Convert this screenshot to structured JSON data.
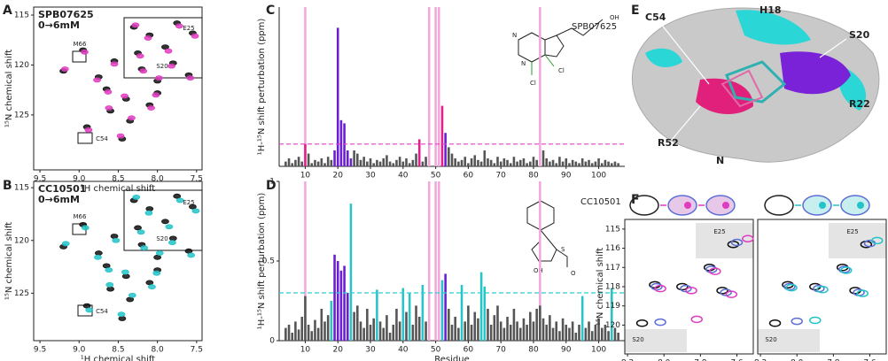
{
  "panel_labels": [
    "A",
    "B",
    "C",
    "D",
    "E",
    "F"
  ],
  "structures": [
    {
      "name": "SPB07625",
      "color": "#e03cc0",
      "atoms": [
        "N",
        "N",
        "OH",
        "Cl",
        "Cl"
      ]
    },
    {
      "name": "CC10501",
      "color": "#22c4c8",
      "atoms": [
        "S",
        "OH",
        "O"
      ]
    }
  ],
  "surface": {
    "labels": [
      "C54",
      "H18",
      "S20",
      "R22",
      "R52",
      "N"
    ]
  },
  "chart_data": [
    {
      "type": "scatter",
      "title": "SPB07625",
      "title_color": "#e03cc0",
      "subtitle": "0→6mM",
      "xlabel": "¹H chemical shift",
      "ylabel": "¹⁵N chemical shift",
      "xlim": [
        9.58,
        7.43
      ],
      "ylim": [
        130.5,
        114.2
      ],
      "xticks": [
        9.5,
        {
          "value": 9,
          "label": "9.0"
        },
        8.5,
        {
          "value": 8,
          "label": "8.0"
        },
        7.5
      ],
      "yticks": [
        115,
        120,
        125
      ],
      "annotations": [
        "M66",
        "E25",
        "S20",
        "C54"
      ],
      "series": [
        {
          "color": "#111111",
          "x": [
            8.95,
            8.3,
            8.1,
            7.9,
            7.75,
            8.55,
            8.2,
            8.0,
            7.8,
            8.65,
            8.4,
            8.1,
            8.75,
            8.35,
            8.0,
            7.6,
            9.2,
            8.9,
            8.45,
            7.55,
            8.25,
            8.6
          ],
          "values": [
            118.5,
            116.2,
            117.0,
            118.2,
            115.8,
            119.6,
            120.4,
            121.6,
            119.8,
            122.4,
            123.4,
            124.0,
            121.2,
            125.6,
            122.8,
            121.0,
            120.6,
            126.2,
            127.4,
            116.8,
            118.8,
            124.6
          ]
        },
        {
          "color": "#e03cc0",
          "x": [
            8.93,
            8.28,
            8.12,
            7.86,
            7.72,
            8.55,
            8.18,
            7.98,
            7.82,
            8.63,
            8.42,
            8.08,
            8.77,
            8.33,
            8.02,
            7.58,
            9.18,
            8.88,
            8.47,
            7.52,
            8.22,
            8.62
          ],
          "values": [
            118.7,
            116.0,
            117.3,
            118.6,
            116.1,
            119.9,
            120.6,
            121.3,
            120.1,
            122.7,
            123.1,
            124.3,
            121.5,
            125.3,
            123.0,
            121.3,
            120.4,
            126.5,
            127.1,
            117.1,
            119.1,
            124.3
          ]
        }
      ]
    },
    {
      "type": "scatter",
      "title": "CC10501",
      "title_color": "#22c4c8",
      "subtitle": "0→6mM",
      "xlabel": "¹H chemical shift",
      "ylabel": "¹⁵N chemical shift",
      "xlim": [
        9.58,
        7.43
      ],
      "ylim": [
        129.5,
        114.4
      ],
      "xticks": [
        9.5,
        {
          "value": 9,
          "label": "9.0"
        },
        8.5,
        {
          "value": 8,
          "label": "8.0"
        },
        7.5
      ],
      "yticks": [
        115,
        120,
        125
      ],
      "annotations": [
        "M66",
        "E25",
        "S20",
        "C54"
      ],
      "series": [
        {
          "color": "#111111",
          "x": [
            8.95,
            8.3,
            8.1,
            7.9,
            7.75,
            8.55,
            8.2,
            8.0,
            7.8,
            8.65,
            8.4,
            8.1,
            8.75,
            8.35,
            8.0,
            7.6,
            9.2,
            8.9,
            8.45,
            7.55,
            8.25,
            8.6
          ],
          "values": [
            118.5,
            116.2,
            117.0,
            118.2,
            115.8,
            119.6,
            120.4,
            121.6,
            119.8,
            122.4,
            123.4,
            124.0,
            121.2,
            125.6,
            122.8,
            121.0,
            120.6,
            126.2,
            127.4,
            116.8,
            118.8,
            124.6
          ]
        },
        {
          "color": "#22c4c8",
          "x": [
            8.92,
            8.27,
            8.11,
            7.85,
            7.71,
            8.53,
            8.17,
            7.97,
            7.81,
            8.62,
            8.41,
            8.07,
            8.76,
            8.32,
            8.01,
            7.57,
            9.17,
            8.87,
            8.46,
            7.51,
            8.21,
            8.61
          ],
          "values": [
            118.8,
            115.9,
            117.4,
            118.7,
            116.2,
            120.0,
            120.7,
            121.2,
            120.2,
            122.8,
            123.0,
            124.4,
            121.6,
            125.2,
            123.1,
            121.4,
            120.3,
            126.6,
            127.0,
            117.2,
            119.2,
            124.2
          ]
        }
      ]
    },
    {
      "type": "bar",
      "ylabel": "¹H-¹⁵N  shift perturbation (ppm)",
      "xlim": [
        2,
        108
      ],
      "ylim": [
        0,
        1
      ],
      "xticks": [
        10,
        20,
        30,
        40,
        50,
        60,
        70,
        80,
        90,
        100
      ],
      "highlights": {
        "color": "#f2a6dc",
        "x": [
          10,
          48,
          50,
          51,
          82
        ]
      },
      "threshold": {
        "value": 0.14,
        "color": "#e63ec8"
      },
      "series": [
        {
          "color": "#555555",
          "x": [
            4,
            5,
            6,
            7,
            8,
            9,
            11,
            12,
            13,
            14,
            15,
            16,
            17,
            18,
            25,
            26,
            27,
            28,
            29,
            30,
            31,
            32,
            33,
            34,
            35,
            36,
            37,
            38,
            39,
            40,
            41,
            42,
            43,
            44,
            46,
            47,
            54,
            55,
            56,
            57,
            58,
            59,
            60,
            61,
            62,
            63,
            64,
            65,
            66,
            67,
            68,
            69,
            70,
            71,
            72,
            73,
            74,
            75,
            76,
            77,
            78,
            79,
            80,
            81,
            83,
            84,
            85,
            86,
            87,
            88,
            89,
            90,
            91,
            92,
            93,
            94,
            95,
            96,
            97,
            98,
            99,
            100,
            101,
            102,
            103,
            104,
            105,
            106
          ],
          "values": [
            0.03,
            0.05,
            0.02,
            0.04,
            0.06,
            0.03,
            0.08,
            0.02,
            0.04,
            0.03,
            0.05,
            0.02,
            0.06,
            0.04,
            0.1,
            0.08,
            0.04,
            0.06,
            0.03,
            0.05,
            0.02,
            0.04,
            0.03,
            0.05,
            0.07,
            0.03,
            0.02,
            0.04,
            0.06,
            0.03,
            0.05,
            0.02,
            0.04,
            0.08,
            0.03,
            0.06,
            0.12,
            0.08,
            0.05,
            0.03,
            0.04,
            0.06,
            0.02,
            0.05,
            0.07,
            0.04,
            0.03,
            0.1,
            0.05,
            0.04,
            0.02,
            0.06,
            0.03,
            0.05,
            0.04,
            0.02,
            0.06,
            0.03,
            0.04,
            0.05,
            0.02,
            0.03,
            0.06,
            0.04,
            0.1,
            0.05,
            0.03,
            0.04,
            0.02,
            0.06,
            0.03,
            0.05,
            0.02,
            0.04,
            0.03,
            0.02,
            0.05,
            0.03,
            0.04,
            0.02,
            0.03,
            0.05,
            0.02,
            0.04,
            0.03,
            0.02,
            0.03,
            0.02
          ]
        },
        {
          "color": "#6a1fd1",
          "x": [
            19,
            20,
            21,
            22,
            23,
            24,
            53
          ],
          "values": [
            0.1,
            0.87,
            0.29,
            0.27,
            0.1,
            0.05,
            0.21
          ]
        },
        {
          "color": "#e0208a",
          "x": [
            10,
            45,
            52
          ],
          "values": [
            0.14,
            0.17,
            0.38
          ]
        }
      ]
    },
    {
      "type": "bar",
      "ylabel": "¹H-¹⁵N  shift perturbation (ppm)",
      "xlabel": "Residue",
      "xlim": [
        2,
        108
      ],
      "ylim": [
        0,
        1
      ],
      "xticks": [
        10,
        20,
        30,
        40,
        50,
        60,
        70,
        80,
        90,
        100
      ],
      "yticks": [
        0,
        0.5,
        1
      ],
      "highlights": {
        "color": "#f2a6dc",
        "x": [
          10,
          48,
          50,
          51,
          82
        ]
      },
      "threshold": {
        "value": 0.3,
        "color": "#2ad0d0"
      },
      "series": [
        {
          "color": "#555555",
          "x": [
            4,
            5,
            6,
            7,
            8,
            9,
            10,
            11,
            12,
            13,
            14,
            15,
            16,
            17,
            25,
            26,
            27,
            28,
            29,
            30,
            31,
            33,
            34,
            35,
            36,
            37,
            38,
            39,
            41,
            43,
            44,
            45,
            47,
            54,
            55,
            56,
            57,
            59,
            60,
            61,
            62,
            63,
            66,
            67,
            68,
            69,
            70,
            71,
            72,
            73,
            74,
            75,
            76,
            77,
            78,
            79,
            80,
            81,
            82,
            83,
            84,
            85,
            86,
            87,
            88,
            89,
            90,
            91,
            92,
            93,
            94,
            96,
            97,
            98,
            99,
            100,
            101,
            102,
            103,
            105,
            106
          ],
          "values": [
            0.08,
            0.1,
            0.05,
            0.12,
            0.07,
            0.15,
            0.28,
            0.1,
            0.06,
            0.13,
            0.08,
            0.2,
            0.12,
            0.16,
            0.18,
            0.22,
            0.12,
            0.08,
            0.2,
            0.1,
            0.14,
            0.12,
            0.08,
            0.16,
            0.05,
            0.1,
            0.2,
            0.12,
            0.18,
            0.1,
            0.22,
            0.15,
            0.12,
            0.2,
            0.1,
            0.15,
            0.08,
            0.12,
            0.22,
            0.1,
            0.18,
            0.14,
            0.2,
            0.1,
            0.16,
            0.22,
            0.12,
            0.08,
            0.15,
            0.1,
            0.2,
            0.12,
            0.08,
            0.14,
            0.1,
            0.18,
            0.12,
            0.2,
            0.22,
            0.14,
            0.1,
            0.16,
            0.08,
            0.12,
            0.06,
            0.14,
            0.1,
            0.08,
            0.12,
            0.05,
            0.1,
            0.08,
            0.12,
            0.06,
            0.1,
            0.14,
            0.08,
            0.1,
            0.06,
            0.08,
            0.05
          ]
        },
        {
          "color": "#6a1fd1",
          "x": [
            19,
            20,
            21,
            22,
            23,
            53
          ],
          "values": [
            0.54,
            0.5,
            0.44,
            0.47,
            0.3,
            0.42
          ]
        },
        {
          "color": "#2ac4c8",
          "x": [
            18,
            24,
            32,
            40,
            42,
            46,
            52,
            58,
            64,
            65,
            95,
            104
          ],
          "values": [
            0.25,
            0.86,
            0.32,
            0.33,
            0.3,
            0.35,
            0.38,
            0.35,
            0.43,
            0.34,
            0.28,
            0.33
          ]
        }
      ]
    },
    {
      "type": "scatter",
      "xlabel": "¹H chemical shift",
      "ylabel": "¹⁵N chemical shift",
      "xlim": [
        8.215,
        7.51
      ],
      "ylim": [
        121.5,
        114.5
      ],
      "xticks": [
        8.2,
        {
          "value": 8,
          "label": "8.0"
        },
        7.8,
        7.6
      ],
      "yticks": [
        115,
        116,
        117,
        118,
        119,
        120
      ],
      "annotations": [
        "E25",
        "S20"
      ],
      "series": [
        {
          "color": "#111111",
          "x": [
            7.62,
            8.12,
            7.9,
            7.75,
            8.05,
            7.68
          ],
          "values": [
            115.8,
            119.9,
            118.0,
            117.0,
            117.9,
            118.2
          ]
        },
        {
          "color": "#5b6fd6",
          "x": [
            7.6,
            8.02,
            7.88,
            7.74,
            8.04,
            7.66
          ],
          "values": [
            115.7,
            119.85,
            118.1,
            117.1,
            118.0,
            118.3
          ]
        },
        {
          "color": "#e03cc0",
          "x": [
            7.54,
            7.82,
            7.85,
            7.72,
            8.02,
            7.63
          ],
          "values": [
            115.5,
            119.7,
            118.2,
            117.2,
            118.1,
            118.4
          ]
        }
      ]
    },
    {
      "type": "scatter",
      "xlabel": "¹H chemical shift",
      "xlim": [
        8.215,
        7.51
      ],
      "ylim": [
        121.5,
        114.5
      ],
      "xticks": [
        8.2,
        {
          "value": 8,
          "label": "8.0"
        },
        7.8,
        7.6
      ],
      "annotations": [
        "E25",
        "S20"
      ],
      "series": [
        {
          "color": "#111111",
          "x": [
            7.62,
            8.12,
            7.9,
            7.75,
            8.05,
            7.68
          ],
          "values": [
            115.8,
            119.9,
            118.0,
            117.0,
            117.9,
            118.2
          ]
        },
        {
          "color": "#5b6fd6",
          "x": [
            7.6,
            8.0,
            7.88,
            7.74,
            8.04,
            7.66
          ],
          "values": [
            115.75,
            119.8,
            118.1,
            117.1,
            118.0,
            118.3
          ]
        },
        {
          "color": "#22c4c8",
          "x": [
            7.56,
            7.9,
            7.86,
            7.73,
            8.03,
            7.64
          ],
          "values": [
            115.6,
            119.75,
            118.15,
            117.15,
            118.05,
            118.35
          ]
        }
      ]
    }
  ]
}
